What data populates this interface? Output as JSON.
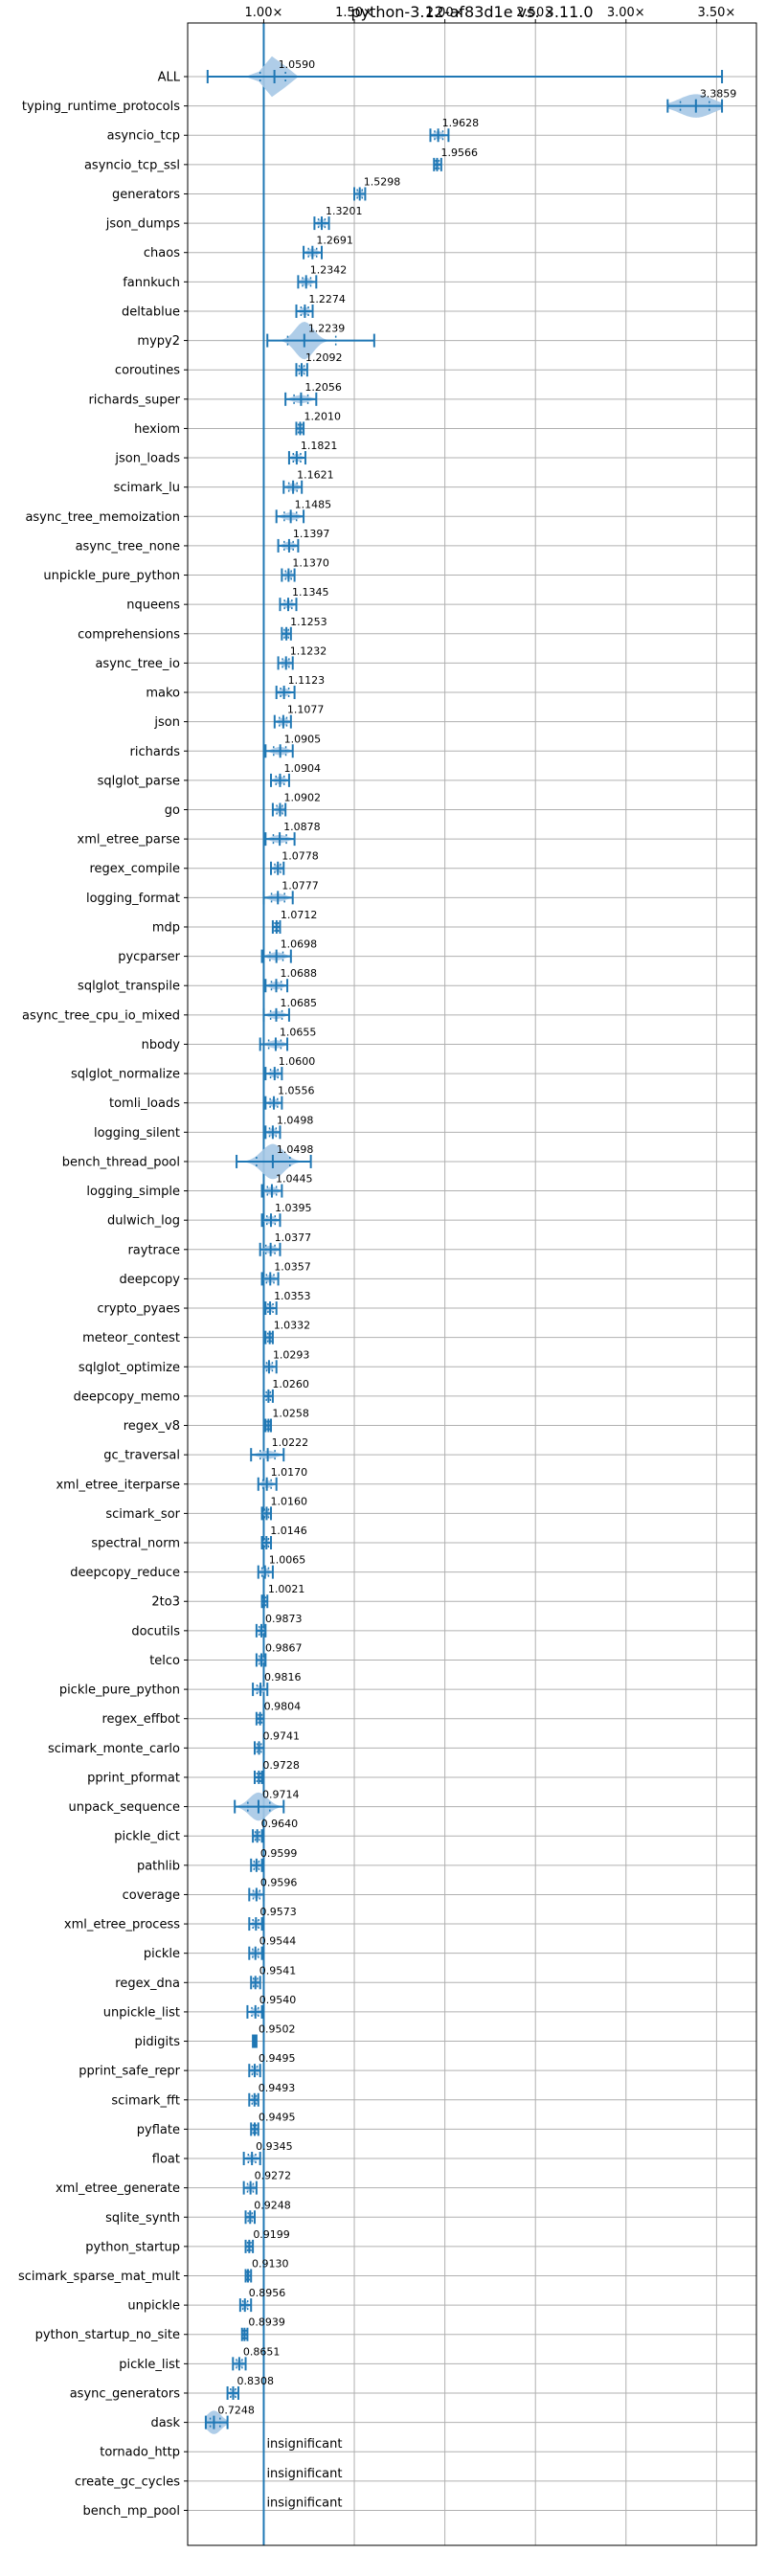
{
  "chart_data": {
    "type": "violin",
    "title": "python-3.12-af83d1e vs. 3.11.0",
    "xlim": [
      0.58,
      3.72
    ],
    "xticks": [
      1.0,
      1.5,
      2.0,
      2.5,
      3.0,
      3.5
    ],
    "xtick_labels": [
      "1.00×",
      "1.50×",
      "2.00×",
      "2.50×",
      "3.00×",
      "3.50×"
    ],
    "grid": true,
    "reference_line": 1.0,
    "colors": {
      "primary": "#1f77b4",
      "violin": "#a6c8e6",
      "grid": "#b0b0b0"
    },
    "benchmarks": [
      {
        "name": "ALL",
        "label": "1.0590",
        "mean": 1.059,
        "min": 0.69,
        "max": 3.53,
        "width": 0.18,
        "spread": 0.05,
        "q1": 0.98,
        "q3": 1.12
      },
      {
        "name": "typing_runtime_protocols",
        "label": "3.3859",
        "mean": 3.386,
        "min": 3.23,
        "max": 3.53,
        "width": 0.1,
        "spread": 0.09,
        "q1": 3.3,
        "q3": 3.46
      },
      {
        "name": "asyncio_tcp",
        "label": "1.9628",
        "mean": 1.963,
        "min": 1.92,
        "max": 2.02
      },
      {
        "name": "asyncio_tcp_ssl",
        "label": "1.9566",
        "mean": 1.957,
        "min": 1.94,
        "max": 1.98
      },
      {
        "name": "generators",
        "label": "1.5298",
        "mean": 1.53,
        "min": 1.5,
        "max": 1.56
      },
      {
        "name": "json_dumps",
        "label": "1.3201",
        "mean": 1.32,
        "min": 1.28,
        "max": 1.36
      },
      {
        "name": "chaos",
        "label": "1.2691",
        "mean": 1.269,
        "min": 1.22,
        "max": 1.32
      },
      {
        "name": "fannkuch",
        "label": "1.2342",
        "mean": 1.234,
        "min": 1.19,
        "max": 1.29
      },
      {
        "name": "deltablue",
        "label": "1.2274",
        "mean": 1.227,
        "min": 1.18,
        "max": 1.27
      },
      {
        "name": "mypy2",
        "label": "1.2239",
        "mean": 1.224,
        "min": 1.02,
        "max": 1.61,
        "width": 0.16,
        "spread": 0.05
      },
      {
        "name": "coroutines",
        "label": "1.2092",
        "mean": 1.209,
        "min": 1.18,
        "max": 1.24
      },
      {
        "name": "richards_super",
        "label": "1.2056",
        "mean": 1.206,
        "min": 1.12,
        "max": 1.29
      },
      {
        "name": "hexiom",
        "label": "1.2010",
        "mean": 1.201,
        "min": 1.18,
        "max": 1.22
      },
      {
        "name": "json_loads",
        "label": "1.1821",
        "mean": 1.182,
        "min": 1.14,
        "max": 1.23
      },
      {
        "name": "scimark_lu",
        "label": "1.1621",
        "mean": 1.162,
        "min": 1.11,
        "max": 1.21
      },
      {
        "name": "async_tree_memoization",
        "label": "1.1485",
        "mean": 1.149,
        "min": 1.07,
        "max": 1.22
      },
      {
        "name": "async_tree_none",
        "label": "1.1397",
        "mean": 1.14,
        "min": 1.08,
        "max": 1.19
      },
      {
        "name": "unpickle_pure_python",
        "label": "1.1370",
        "mean": 1.137,
        "min": 1.1,
        "max": 1.17
      },
      {
        "name": "nqueens",
        "label": "1.1345",
        "mean": 1.135,
        "min": 1.09,
        "max": 1.18
      },
      {
        "name": "comprehensions",
        "label": "1.1253",
        "mean": 1.125,
        "min": 1.1,
        "max": 1.15
      },
      {
        "name": "async_tree_io",
        "label": "1.1232",
        "mean": 1.123,
        "min": 1.08,
        "max": 1.16
      },
      {
        "name": "mako",
        "label": "1.1123",
        "mean": 1.112,
        "min": 1.07,
        "max": 1.17
      },
      {
        "name": "json",
        "label": "1.1077",
        "mean": 1.108,
        "min": 1.06,
        "max": 1.15
      },
      {
        "name": "richards",
        "label": "1.0905",
        "mean": 1.091,
        "min": 1.01,
        "max": 1.16
      },
      {
        "name": "sqlglot_parse",
        "label": "1.0904",
        "mean": 1.09,
        "min": 1.04,
        "max": 1.14
      },
      {
        "name": "go",
        "label": "1.0902",
        "mean": 1.09,
        "min": 1.05,
        "max": 1.12
      },
      {
        "name": "xml_etree_parse",
        "label": "1.0878",
        "mean": 1.088,
        "min": 1.01,
        "max": 1.17
      },
      {
        "name": "regex_compile",
        "label": "1.0778",
        "mean": 1.078,
        "min": 1.04,
        "max": 1.11
      },
      {
        "name": "logging_format",
        "label": "1.0777",
        "mean": 1.078,
        "min": 1.0,
        "max": 1.16
      },
      {
        "name": "mdp",
        "label": "1.0712",
        "mean": 1.071,
        "min": 1.05,
        "max": 1.09
      },
      {
        "name": "pycparser",
        "label": "1.0698",
        "mean": 1.07,
        "min": 0.99,
        "max": 1.15
      },
      {
        "name": "sqlglot_transpile",
        "label": "1.0688",
        "mean": 1.069,
        "min": 1.01,
        "max": 1.13
      },
      {
        "name": "async_tree_cpu_io_mixed",
        "label": "1.0685",
        "mean": 1.069,
        "min": 1.0,
        "max": 1.14
      },
      {
        "name": "nbody",
        "label": "1.0655",
        "mean": 1.066,
        "min": 0.98,
        "max": 1.13
      },
      {
        "name": "sqlglot_normalize",
        "label": "1.0600",
        "mean": 1.06,
        "min": 1.01,
        "max": 1.1
      },
      {
        "name": "tomli_loads",
        "label": "1.0556",
        "mean": 1.056,
        "min": 1.01,
        "max": 1.1
      },
      {
        "name": "logging_silent",
        "label": "1.0498",
        "mean": 1.05,
        "min": 1.01,
        "max": 1.09
      },
      {
        "name": "bench_thread_pool",
        "label": "1.0498",
        "mean": 1.05,
        "min": 0.85,
        "max": 1.26,
        "width": 0.15,
        "spread": 0.06
      },
      {
        "name": "logging_simple",
        "label": "1.0445",
        "mean": 1.045,
        "min": 0.99,
        "max": 1.1
      },
      {
        "name": "dulwich_log",
        "label": "1.0395",
        "mean": 1.04,
        "min": 0.99,
        "max": 1.09
      },
      {
        "name": "raytrace",
        "label": "1.0377",
        "mean": 1.038,
        "min": 0.98,
        "max": 1.09
      },
      {
        "name": "deepcopy",
        "label": "1.0357",
        "mean": 1.036,
        "min": 0.99,
        "max": 1.08
      },
      {
        "name": "crypto_pyaes",
        "label": "1.0353",
        "mean": 1.035,
        "min": 1.01,
        "max": 1.07
      },
      {
        "name": "meteor_contest",
        "label": "1.0332",
        "mean": 1.033,
        "min": 1.01,
        "max": 1.05
      },
      {
        "name": "sqlglot_optimize",
        "label": "1.0293",
        "mean": 1.029,
        "min": 1.0,
        "max": 1.07
      },
      {
        "name": "deepcopy_memo",
        "label": "1.0260",
        "mean": 1.026,
        "min": 1.0,
        "max": 1.05
      },
      {
        "name": "regex_v8",
        "label": "1.0258",
        "mean": 1.026,
        "min": 1.01,
        "max": 1.04
      },
      {
        "name": "gc_traversal",
        "label": "1.0222",
        "mean": 1.022,
        "min": 0.93,
        "max": 1.11
      },
      {
        "name": "xml_etree_iterparse",
        "label": "1.0170",
        "mean": 1.017,
        "min": 0.97,
        "max": 1.07
      },
      {
        "name": "scimark_sor",
        "label": "1.0160",
        "mean": 1.016,
        "min": 0.99,
        "max": 1.04
      },
      {
        "name": "spectral_norm",
        "label": "1.0146",
        "mean": 1.015,
        "min": 0.99,
        "max": 1.04
      },
      {
        "name": "deepcopy_reduce",
        "label": "1.0065",
        "mean": 1.007,
        "min": 0.97,
        "max": 1.05
      },
      {
        "name": "2to3",
        "label": "1.0021",
        "mean": 1.002,
        "min": 0.99,
        "max": 1.02
      },
      {
        "name": "docutils",
        "label": "0.9873",
        "mean": 0.987,
        "min": 0.96,
        "max": 1.01
      },
      {
        "name": "telco",
        "label": "0.9867",
        "mean": 0.987,
        "min": 0.96,
        "max": 1.01
      },
      {
        "name": "pickle_pure_python",
        "label": "0.9816",
        "mean": 0.982,
        "min": 0.94,
        "max": 1.02
      },
      {
        "name": "regex_effbot",
        "label": "0.9804",
        "mean": 0.98,
        "min": 0.96,
        "max": 1.0
      },
      {
        "name": "scimark_monte_carlo",
        "label": "0.9741",
        "mean": 0.974,
        "min": 0.95,
        "max": 1.0
      },
      {
        "name": "pprint_pformat",
        "label": "0.9728",
        "mean": 0.973,
        "min": 0.95,
        "max": 0.99
      },
      {
        "name": "unpack_sequence",
        "label": "0.9714",
        "mean": 0.971,
        "min": 0.84,
        "max": 1.11,
        "width": 0.12,
        "spread": 0.05
      },
      {
        "name": "pickle_dict",
        "label": "0.9640",
        "mean": 0.964,
        "min": 0.94,
        "max": 0.99
      },
      {
        "name": "pathlib",
        "label": "0.9599",
        "mean": 0.96,
        "min": 0.93,
        "max": 0.99
      },
      {
        "name": "coverage",
        "label": "0.9596",
        "mean": 0.96,
        "min": 0.92,
        "max": 1.0
      },
      {
        "name": "xml_etree_process",
        "label": "0.9573",
        "mean": 0.957,
        "min": 0.92,
        "max": 0.99
      },
      {
        "name": "pickle",
        "label": "0.9544",
        "mean": 0.954,
        "min": 0.92,
        "max": 0.99
      },
      {
        "name": "regex_dna",
        "label": "0.9541",
        "mean": 0.954,
        "min": 0.93,
        "max": 0.98
      },
      {
        "name": "unpickle_list",
        "label": "0.9540",
        "mean": 0.954,
        "min": 0.91,
        "max": 0.99
      },
      {
        "name": "pidigits",
        "label": "0.9502",
        "mean": 0.95,
        "min": 0.94,
        "max": 0.96
      },
      {
        "name": "pprint_safe_repr",
        "label": "0.9495",
        "mean": 0.95,
        "min": 0.92,
        "max": 0.98
      },
      {
        "name": "scimark_fft",
        "label": "0.9493",
        "mean": 0.949,
        "min": 0.92,
        "max": 0.97
      },
      {
        "name": "pyflate",
        "label": "0.9495",
        "mean": 0.95,
        "min": 0.93,
        "max": 0.97
      },
      {
        "name": "float",
        "label": "0.9345",
        "mean": 0.935,
        "min": 0.89,
        "max": 0.98
      },
      {
        "name": "xml_etree_generate",
        "label": "0.9272",
        "mean": 0.927,
        "min": 0.89,
        "max": 0.96
      },
      {
        "name": "sqlite_synth",
        "label": "0.9248",
        "mean": 0.925,
        "min": 0.9,
        "max": 0.95
      },
      {
        "name": "python_startup",
        "label": "0.9199",
        "mean": 0.92,
        "min": 0.9,
        "max": 0.94
      },
      {
        "name": "scimark_sparse_mat_mult",
        "label": "0.9130",
        "mean": 0.913,
        "min": 0.9,
        "max": 0.93
      },
      {
        "name": "unpickle",
        "label": "0.8956",
        "mean": 0.896,
        "min": 0.87,
        "max": 0.93
      },
      {
        "name": "python_startup_no_site",
        "label": "0.8939",
        "mean": 0.894,
        "min": 0.88,
        "max": 0.91
      },
      {
        "name": "pickle_list",
        "label": "0.8651",
        "mean": 0.865,
        "min": 0.83,
        "max": 0.9
      },
      {
        "name": "async_generators",
        "label": "0.8308",
        "mean": 0.831,
        "min": 0.8,
        "max": 0.86
      },
      {
        "name": "dask",
        "label": "0.7248",
        "mean": 0.725,
        "min": 0.68,
        "max": 0.8,
        "width": 0.1,
        "spread": 0.04
      },
      {
        "name": "tornado_http",
        "label": "insignificant",
        "insignificant": true
      },
      {
        "name": "create_gc_cycles",
        "label": "insignificant",
        "insignificant": true
      },
      {
        "name": "bench_mp_pool",
        "label": "insignificant",
        "insignificant": true
      }
    ]
  }
}
